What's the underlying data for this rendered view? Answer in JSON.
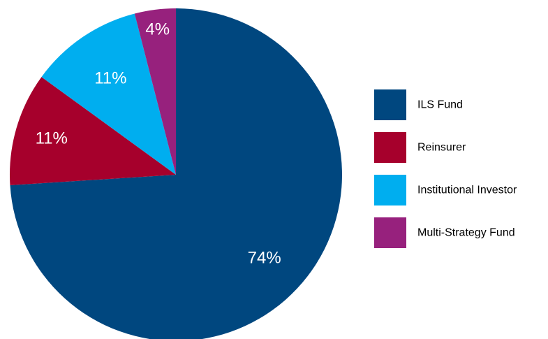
{
  "chart_data": {
    "type": "pie",
    "title": "",
    "slices": [
      {
        "label": "ILS Fund",
        "value": 74,
        "display": "74%",
        "color": "#00477F"
      },
      {
        "label": "Reinsurer",
        "value": 11,
        "display": "11%",
        "color": "#A6002C"
      },
      {
        "label": "Institutional Investor",
        "value": 11,
        "display": "11%",
        "color": "#00AEEF"
      },
      {
        "label": "Multi-Strategy Fund",
        "value": 4,
        "display": "4%",
        "color": "#97217D"
      }
    ],
    "start": "12 o'clock",
    "direction": "clockwise",
    "legend": {
      "position": "right"
    }
  }
}
